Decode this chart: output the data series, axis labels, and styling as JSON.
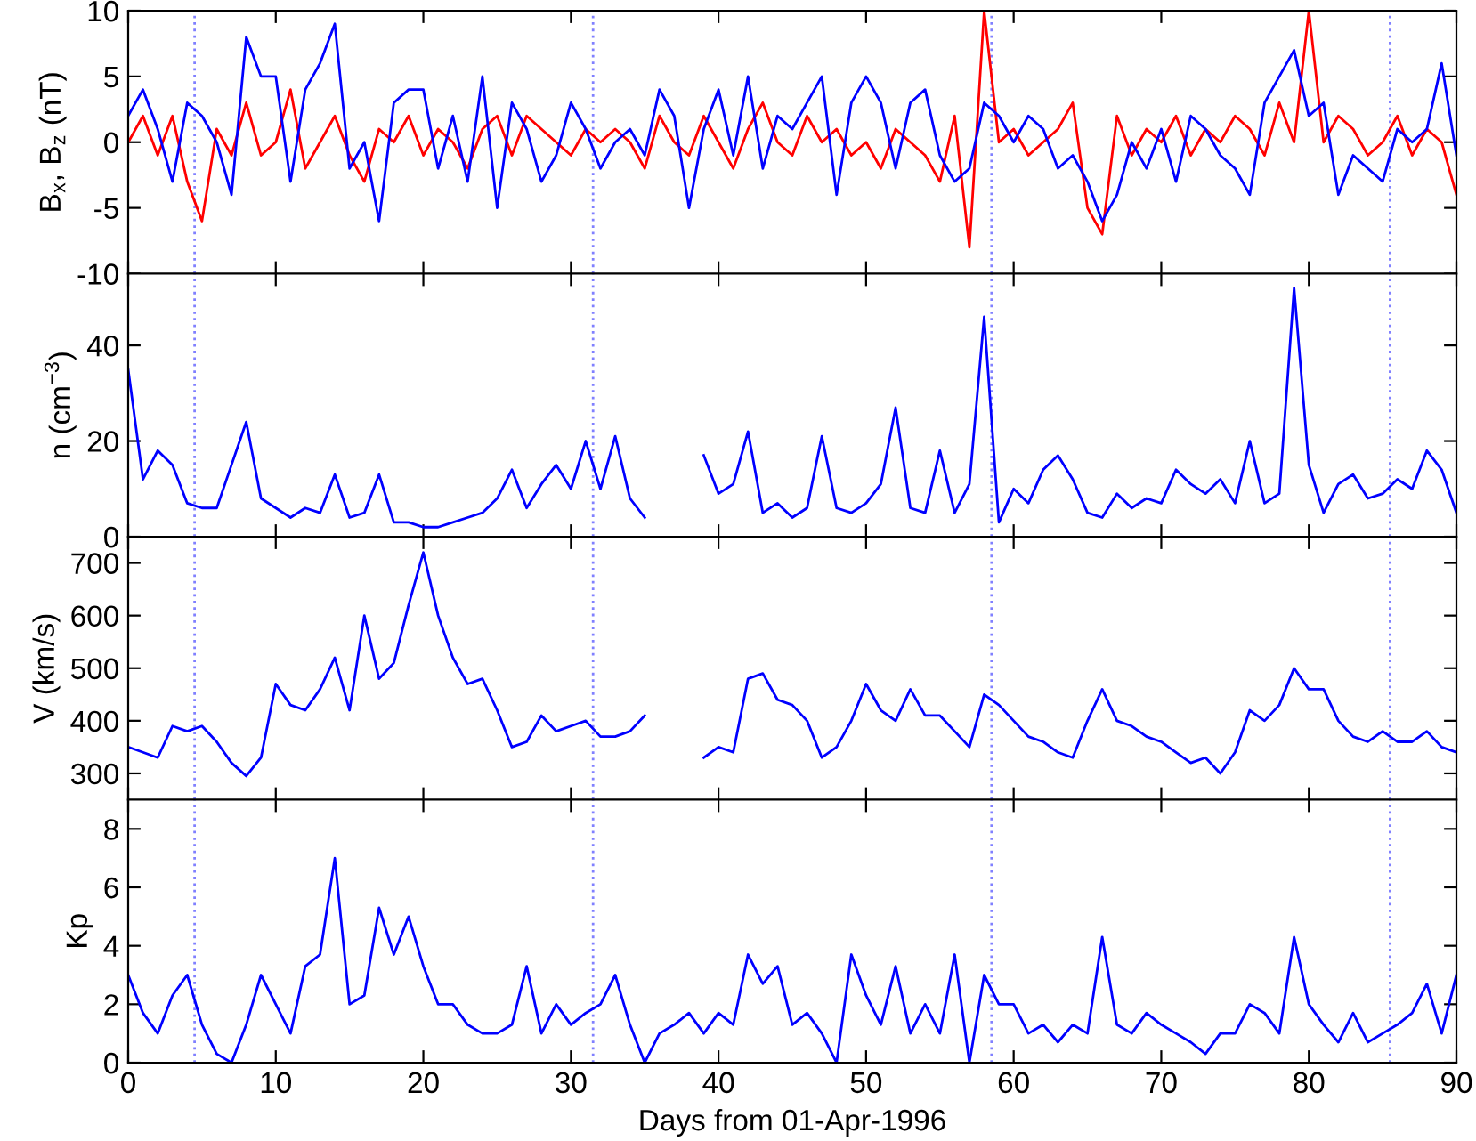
{
  "chart_data": [
    {
      "type": "line",
      "ylabel": "B$_{x}$, B$_{z}$ (nT)",
      "tick_labels": "y",
      "grid": false,
      "legend": false,
      "marker": "none",
      "line_style": "solid",
      "x": [
        0,
        1,
        2,
        3,
        4,
        5,
        6,
        7,
        8,
        9,
        10,
        11,
        12,
        13,
        14,
        15,
        16,
        17,
        18,
        19,
        20,
        21,
        22,
        23,
        24,
        25,
        26,
        27,
        28,
        29,
        30,
        31,
        32,
        33,
        34,
        35,
        36,
        37,
        38,
        39,
        40,
        41,
        42,
        43,
        44,
        45,
        46,
        47,
        48,
        49,
        50,
        51,
        52,
        53,
        54,
        55,
        56,
        57,
        58,
        59,
        60,
        61,
        62,
        63,
        64,
        65,
        66,
        67,
        68,
        69,
        70,
        71,
        72,
        73,
        74,
        75,
        76,
        77,
        78,
        79,
        80,
        81,
        82,
        83,
        84,
        85,
        86,
        87,
        88,
        89,
        90
      ],
      "xlim": [
        0,
        90
      ],
      "xticks": [
        0,
        10,
        20,
        30,
        40,
        50,
        60,
        70,
        80,
        90
      ],
      "ylim": [
        -10,
        10
      ],
      "yticks": [
        -10,
        -5,
        0,
        5,
        10
      ],
      "ref_lines": [
        {
          "axis": "x",
          "value": 4.5,
          "color": "#8080ff",
          "line_style": "dotted"
        },
        {
          "axis": "x",
          "value": 31.5,
          "color": "#8080ff",
          "line_style": "dotted"
        },
        {
          "axis": "x",
          "value": 58.5,
          "color": "#8080ff",
          "line_style": "dotted"
        },
        {
          "axis": "x",
          "value": 85.5,
          "color": "#8080ff",
          "line_style": "dotted"
        }
      ],
      "series": [
        {
          "color": "#ff0000",
          "values": [
            0,
            2,
            -1,
            2,
            -3,
            -6,
            1,
            -1,
            3,
            -1,
            0,
            4,
            -2,
            0,
            2,
            -1,
            -3,
            1,
            0,
            2,
            -1,
            1,
            0,
            -2,
            1,
            2,
            -1,
            2,
            1,
            0,
            -1,
            1,
            0,
            1,
            0,
            -2,
            2,
            0,
            -1,
            2,
            0,
            -2,
            1,
            3,
            0,
            -1,
            2,
            0,
            1,
            -1,
            0,
            -2,
            1,
            0,
            -1,
            -3,
            2,
            -8,
            10,
            0,
            1,
            -1,
            0,
            1,
            3,
            -5,
            -7,
            2,
            -1,
            1,
            0,
            2,
            -1,
            1,
            0,
            2,
            1,
            -1,
            3,
            0,
            10,
            0,
            2,
            1,
            -1,
            0,
            2,
            -1,
            1,
            0,
            -4
          ]
        },
        {
          "color": "#0000ff",
          "values": [
            2,
            4,
            1,
            -3,
            3,
            2,
            0,
            -4,
            8,
            5,
            5,
            -3,
            4,
            6,
            9,
            -2,
            0,
            -6,
            3,
            4,
            4,
            -2,
            2,
            -3,
            5,
            -5,
            3,
            1,
            -3,
            -1,
            3,
            1,
            -2,
            0,
            1,
            -1,
            4,
            2,
            -5,
            1,
            4,
            -1,
            5,
            -2,
            2,
            1,
            3,
            5,
            -4,
            3,
            5,
            3,
            -2,
            3,
            4,
            -1,
            -3,
            -2,
            3,
            2,
            0,
            2,
            1,
            -2,
            -1,
            -3,
            -6,
            -4,
            0,
            -2,
            1,
            -3,
            2,
            1,
            -1,
            -2,
            -4,
            3,
            5,
            7,
            2,
            3,
            -4,
            -1,
            -2,
            -3,
            1,
            0,
            1,
            6,
            -1
          ]
        }
      ]
    },
    {
      "type": "line",
      "ylabel": "n (cm$^{−3}$)",
      "tick_labels": "y",
      "grid": false,
      "legend": false,
      "marker": "none",
      "line_style": "solid",
      "x": [
        0,
        1,
        2,
        3,
        4,
        5,
        6,
        7,
        8,
        9,
        10,
        11,
        12,
        13,
        14,
        15,
        16,
        17,
        18,
        19,
        20,
        21,
        22,
        23,
        24,
        25,
        26,
        27,
        28,
        29,
        30,
        31,
        32,
        33,
        34,
        35,
        36,
        37,
        38,
        39,
        40,
        41,
        42,
        43,
        44,
        45,
        46,
        47,
        48,
        49,
        50,
        51,
        52,
        53,
        54,
        55,
        56,
        57,
        58,
        59,
        60,
        61,
        62,
        63,
        64,
        65,
        66,
        67,
        68,
        69,
        70,
        71,
        72,
        73,
        74,
        75,
        76,
        77,
        78,
        79,
        80,
        81,
        82,
        83,
        84,
        85,
        86,
        87,
        88,
        89,
        90
      ],
      "xlim": [
        0,
        90
      ],
      "xticks": [
        0,
        10,
        20,
        30,
        40,
        50,
        60,
        70,
        80,
        90
      ],
      "ylim": [
        0,
        55
      ],
      "yticks": [
        0,
        20,
        40
      ],
      "ref_lines": [
        {
          "axis": "x",
          "value": 4.5,
          "color": "#8080ff",
          "line_style": "dotted"
        },
        {
          "axis": "x",
          "value": 31.5,
          "color": "#8080ff",
          "line_style": "dotted"
        },
        {
          "axis": "x",
          "value": 58.5,
          "color": "#8080ff",
          "line_style": "dotted"
        },
        {
          "axis": "x",
          "value": 85.5,
          "color": "#8080ff",
          "line_style": "dotted"
        }
      ],
      "series": [
        {
          "color": "#0000ff",
          "values": [
            35,
            12,
            18,
            15,
            7,
            6,
            6,
            15,
            24,
            8,
            6,
            4,
            6,
            5,
            13,
            4,
            5,
            13,
            3,
            3,
            2,
            2,
            3,
            4,
            5,
            8,
            14,
            6,
            11,
            15,
            10,
            20,
            10,
            21,
            8,
            4,
            null,
            null,
            null,
            17,
            9,
            11,
            22,
            5,
            7,
            4,
            6,
            21,
            6,
            5,
            7,
            11,
            27,
            6,
            5,
            18,
            5,
            11,
            46,
            3,
            10,
            7,
            14,
            17,
            12,
            5,
            4,
            9,
            6,
            8,
            7,
            14,
            11,
            9,
            12,
            7,
            20,
            7,
            9,
            52,
            15,
            5,
            11,
            13,
            8,
            9,
            12,
            10,
            18,
            14,
            5
          ]
        }
      ]
    },
    {
      "type": "line",
      "ylabel": "V (km/s)",
      "tick_labels": "y",
      "grid": false,
      "legend": false,
      "marker": "none",
      "line_style": "solid",
      "x": [
        0,
        1,
        2,
        3,
        4,
        5,
        6,
        7,
        8,
        9,
        10,
        11,
        12,
        13,
        14,
        15,
        16,
        17,
        18,
        19,
        20,
        21,
        22,
        23,
        24,
        25,
        26,
        27,
        28,
        29,
        30,
        31,
        32,
        33,
        34,
        35,
        36,
        37,
        38,
        39,
        40,
        41,
        42,
        43,
        44,
        45,
        46,
        47,
        48,
        49,
        50,
        51,
        52,
        53,
        54,
        55,
        56,
        57,
        58,
        59,
        60,
        61,
        62,
        63,
        64,
        65,
        66,
        67,
        68,
        69,
        70,
        71,
        72,
        73,
        74,
        75,
        76,
        77,
        78,
        79,
        80,
        81,
        82,
        83,
        84,
        85,
        86,
        87,
        88,
        89,
        90
      ],
      "xlim": [
        0,
        90
      ],
      "xticks": [
        0,
        10,
        20,
        30,
        40,
        50,
        60,
        70,
        80,
        90
      ],
      "ylim": [
        250,
        750
      ],
      "yticks": [
        300,
        400,
        500,
        600,
        700
      ],
      "ref_lines": [
        {
          "axis": "x",
          "value": 4.5,
          "color": "#8080ff",
          "line_style": "dotted"
        },
        {
          "axis": "x",
          "value": 31.5,
          "color": "#8080ff",
          "line_style": "dotted"
        },
        {
          "axis": "x",
          "value": 58.5,
          "color": "#8080ff",
          "line_style": "dotted"
        },
        {
          "axis": "x",
          "value": 85.5,
          "color": "#8080ff",
          "line_style": "dotted"
        }
      ],
      "series": [
        {
          "color": "#0000ff",
          "values": [
            350,
            340,
            330,
            390,
            380,
            390,
            360,
            320,
            295,
            330,
            470,
            430,
            420,
            460,
            520,
            420,
            600,
            480,
            510,
            620,
            720,
            600,
            520,
            470,
            480,
            420,
            350,
            360,
            410,
            380,
            390,
            400,
            370,
            370,
            380,
            410,
            null,
            null,
            null,
            330,
            350,
            340,
            480,
            490,
            440,
            430,
            400,
            330,
            350,
            400,
            470,
            420,
            400,
            460,
            410,
            410,
            380,
            350,
            450,
            430,
            400,
            370,
            360,
            340,
            330,
            400,
            460,
            400,
            390,
            370,
            360,
            340,
            320,
            330,
            300,
            340,
            420,
            400,
            430,
            500,
            460,
            460,
            400,
            370,
            360,
            380,
            360,
            360,
            380,
            350,
            340
          ]
        }
      ]
    },
    {
      "type": "line",
      "ylabel": "Kp",
      "xlabel": "Days from 01-Apr-1996",
      "grid": false,
      "legend": false,
      "marker": "none",
      "line_style": "solid",
      "x": [
        0,
        1,
        2,
        3,
        4,
        5,
        6,
        7,
        8,
        9,
        10,
        11,
        12,
        13,
        14,
        15,
        16,
        17,
        18,
        19,
        20,
        21,
        22,
        23,
        24,
        25,
        26,
        27,
        28,
        29,
        30,
        31,
        32,
        33,
        34,
        35,
        36,
        37,
        38,
        39,
        40,
        41,
        42,
        43,
        44,
        45,
        46,
        47,
        48,
        49,
        50,
        51,
        52,
        53,
        54,
        55,
        56,
        57,
        58,
        59,
        60,
        61,
        62,
        63,
        64,
        65,
        66,
        67,
        68,
        69,
        70,
        71,
        72,
        73,
        74,
        75,
        76,
        77,
        78,
        79,
        80,
        81,
        82,
        83,
        84,
        85,
        86,
        87,
        88,
        89,
        90
      ],
      "xlim": [
        0,
        90
      ],
      "xticks": [
        0,
        10,
        20,
        30,
        40,
        50,
        60,
        70,
        80,
        90
      ],
      "ylim": [
        0,
        9
      ],
      "yticks": [
        0,
        2,
        4,
        6,
        8
      ],
      "ref_lines": [
        {
          "axis": "x",
          "value": 4.5,
          "color": "#8080ff",
          "line_style": "dotted"
        },
        {
          "axis": "x",
          "value": 31.5,
          "color": "#8080ff",
          "line_style": "dotted"
        },
        {
          "axis": "x",
          "value": 58.5,
          "color": "#8080ff",
          "line_style": "dotted"
        },
        {
          "axis": "x",
          "value": 85.5,
          "color": "#8080ff",
          "line_style": "dotted"
        }
      ],
      "series": [
        {
          "color": "#0000ff",
          "values": [
            3,
            1.7,
            1,
            2.3,
            3,
            1.3,
            0.3,
            0,
            1.3,
            3,
            2,
            1,
            3.3,
            3.7,
            7,
            2,
            2.3,
            5.3,
            3.7,
            5,
            3.3,
            2,
            2,
            1.3,
            1,
            1,
            1.3,
            3.3,
            1,
            2,
            1.3,
            1.7,
            2,
            3,
            1.3,
            0,
            1,
            1.3,
            1.7,
            1,
            1.7,
            1.3,
            3.7,
            2.7,
            3.3,
            1.3,
            1.7,
            1,
            0,
            3.7,
            2.3,
            1.3,
            3.3,
            1,
            2,
            1,
            3.7,
            0,
            3,
            2,
            2,
            1,
            1.3,
            0.7,
            1.3,
            1,
            4.3,
            1.3,
            1,
            1.7,
            1.3,
            1,
            0.7,
            0.3,
            1,
            1,
            2,
            1.7,
            1,
            4.3,
            2,
            1.3,
            0.7,
            1.7,
            0.7,
            1,
            1.3,
            1.7,
            2.7,
            1,
            3
          ]
        }
      ]
    }
  ]
}
